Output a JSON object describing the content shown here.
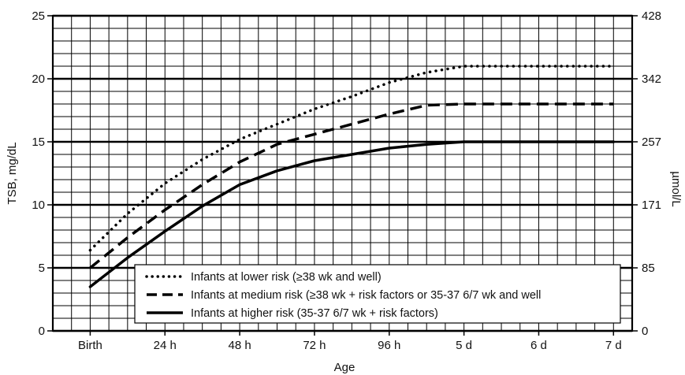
{
  "chart_data": {
    "type": "line",
    "title": "",
    "xlabel": "Age",
    "ylabel": "TSB, mg/dL",
    "ylabel_right": "µmol/L",
    "x_ticks": [
      "Birth",
      "24 h",
      "48 h",
      "72 h",
      "96 h",
      "5 d",
      "6 d",
      "7 d"
    ],
    "x_tick_hours": [
      0,
      24,
      48,
      72,
      96,
      120,
      144,
      168
    ],
    "xlim_hours": [
      -12,
      174
    ],
    "ylim": [
      0,
      25
    ],
    "y_ticks": [
      0,
      5,
      10,
      15,
      20,
      25
    ],
    "y_ticks_right": [
      {
        "value": 0,
        "label": "0"
      },
      {
        "value": 5,
        "label": "85"
      },
      {
        "value": 10,
        "label": "171"
      },
      {
        "value": 15,
        "label": "257"
      },
      {
        "value": 20,
        "label": "342"
      },
      {
        "value": 25,
        "label": "428"
      }
    ],
    "grid": true,
    "legend_position": "bottom-center",
    "series": [
      {
        "name": "Infants at lower risk (≥38 wk and well)",
        "style": "dotted",
        "x": [
          0,
          12,
          24,
          36,
          48,
          60,
          72,
          84,
          96,
          108,
          120,
          144,
          168
        ],
        "y": [
          6.4,
          9.3,
          11.7,
          13.6,
          15.2,
          16.4,
          17.6,
          18.6,
          19.7,
          20.5,
          21.0,
          21.0,
          21.0
        ]
      },
      {
        "name": "Infants at medium risk (≥38 wk + risk factors or 35-37 6/7 wk and well",
        "style": "dashed",
        "x": [
          0,
          12,
          24,
          36,
          48,
          60,
          72,
          84,
          96,
          108,
          120,
          144,
          168
        ],
        "y": [
          5.0,
          7.4,
          9.6,
          11.6,
          13.4,
          14.8,
          15.6,
          16.4,
          17.2,
          17.9,
          18.0,
          18.0,
          18.0
        ]
      },
      {
        "name": "Infants at higher risk (35-37 6/7 wk + risk factors)",
        "style": "solid",
        "x": [
          0,
          12,
          24,
          36,
          48,
          60,
          72,
          84,
          96,
          108,
          120,
          144,
          168
        ],
        "y": [
          3.5,
          5.8,
          7.9,
          9.9,
          11.6,
          12.7,
          13.5,
          14.0,
          14.5,
          14.8,
          15.0,
          15.0,
          15.0
        ]
      }
    ]
  }
}
